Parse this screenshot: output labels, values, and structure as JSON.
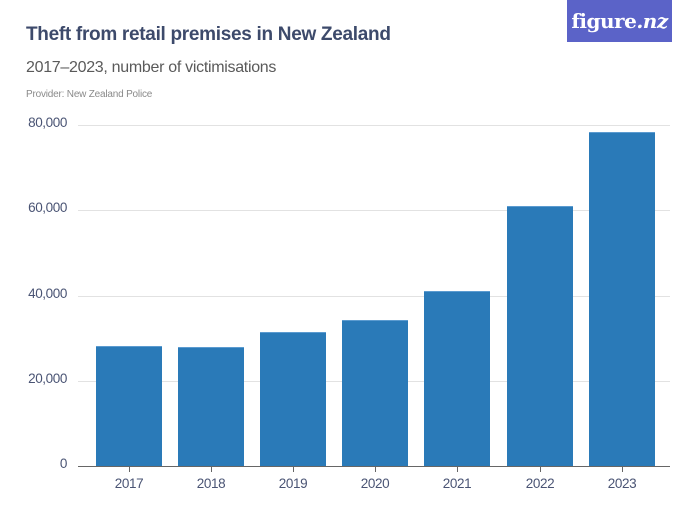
{
  "header": {
    "title": "Theft from retail premises in New Zealand",
    "subtitle": "2017–2023, number of victimisations",
    "provider": "Provider: New Zealand Police",
    "logo": {
      "main": "figure",
      "suffix": ".nz",
      "bg_color": "#5b63c8"
    }
  },
  "chart_data": {
    "type": "bar",
    "title": "Theft from retail premises in New Zealand",
    "subtitle": "2017–2023, number of victimisations",
    "xlabel": "",
    "ylabel": "",
    "categories": [
      "2017",
      "2018",
      "2019",
      "2020",
      "2021",
      "2022",
      "2023"
    ],
    "values": [
      28100,
      27900,
      31400,
      34300,
      41100,
      61100,
      78400
    ],
    "ylim": [
      0,
      80000
    ],
    "yticks": [
      0,
      20000,
      40000,
      60000,
      80000
    ],
    "ytick_labels": [
      "0",
      "20,000",
      "40,000",
      "60,000",
      "80,000"
    ],
    "grid": true,
    "legend": null,
    "bar_color": "#2a7ab8"
  }
}
